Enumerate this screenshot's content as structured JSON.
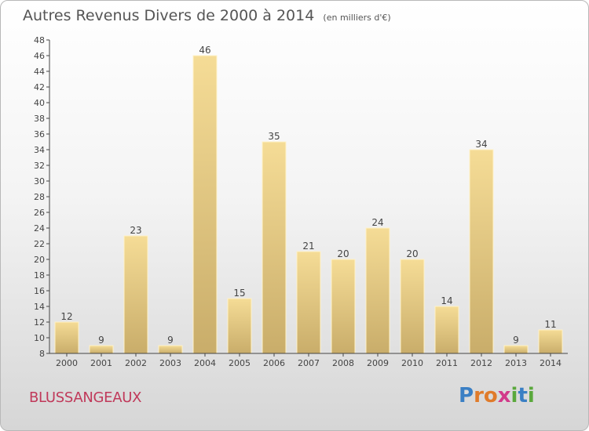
{
  "title": "Autres Revenus Divers de 2000 à 2014",
  "subtitle": "(en milliers d'€)",
  "commune": "BLUSSANGEAUX",
  "logo": {
    "letters": [
      "P",
      "r",
      "o",
      "x",
      "i",
      "t",
      "i"
    ],
    "colors": [
      "#3a7fc4",
      "#e07b2a",
      "#e07b2a",
      "#d23a8a",
      "#5aa83c",
      "#3a7fc4",
      "#5aa83c"
    ]
  },
  "colors": {
    "bar_top": "#f5dc96",
    "bar_bottom": "#c9ad6a",
    "axis": "#444444",
    "text": "#444444",
    "title": "#555555",
    "commune": "#c0395a"
  },
  "chart_data": {
    "type": "bar",
    "title": "Autres Revenus Divers de 2000 à 2014",
    "subtitle": "(en milliers d'€)",
    "categories": [
      "2000",
      "2001",
      "2002",
      "2003",
      "2004",
      "2005",
      "2006",
      "2007",
      "2008",
      "2009",
      "2010",
      "2011",
      "2012",
      "2013",
      "2014"
    ],
    "values": [
      12,
      9,
      23,
      9,
      46,
      15,
      35,
      21,
      20,
      24,
      20,
      14,
      34,
      9,
      11
    ],
    "ylim": [
      8,
      48
    ],
    "yticks": [
      8,
      10,
      12,
      14,
      16,
      18,
      20,
      22,
      24,
      26,
      28,
      30,
      32,
      34,
      36,
      38,
      40,
      42,
      44,
      46,
      48
    ],
    "grid": false,
    "data_labels": true
  }
}
